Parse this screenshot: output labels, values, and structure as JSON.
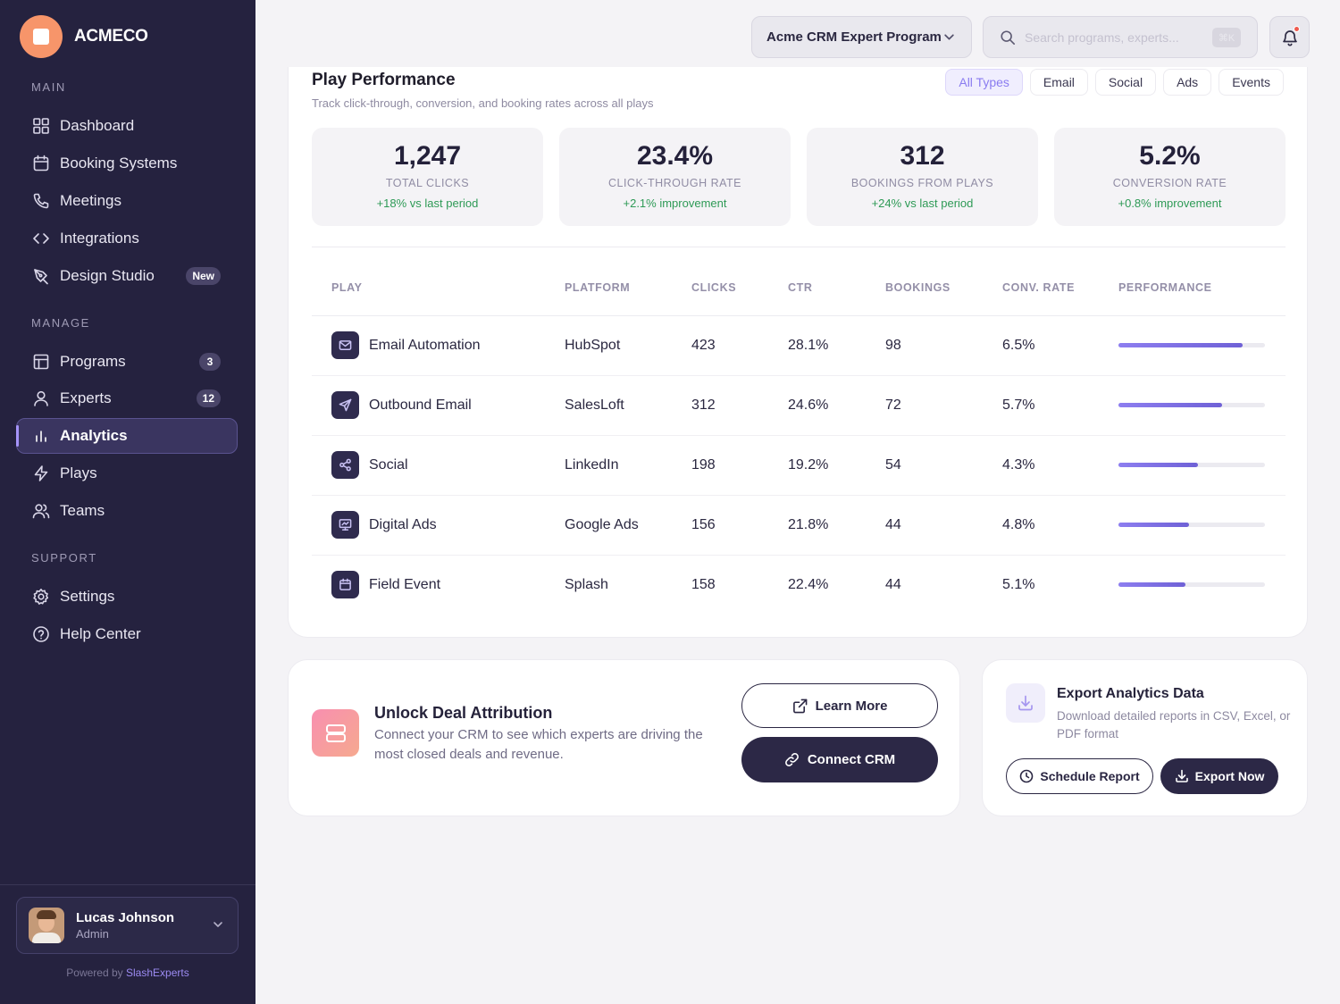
{
  "brand": {
    "name": "ACMECO"
  },
  "sidebar": {
    "sections": {
      "main": "MAIN",
      "manage": "MANAGE",
      "support": "SUPPORT"
    },
    "main_items": [
      {
        "label": "Dashboard",
        "icon": "grid-icon"
      },
      {
        "label": "Booking Systems",
        "icon": "calendar-icon"
      },
      {
        "label": "Meetings",
        "icon": "phone-icon"
      },
      {
        "label": "Integrations",
        "icon": "code-icon"
      },
      {
        "label": "Design Studio",
        "icon": "pen-tool-icon",
        "badge": "New"
      }
    ],
    "manage_items": [
      {
        "label": "Programs",
        "icon": "layout-icon",
        "badge": "3"
      },
      {
        "label": "Experts",
        "icon": "user-icon",
        "badge": "12"
      },
      {
        "label": "Analytics",
        "icon": "bar-chart-icon",
        "active": true
      },
      {
        "label": "Plays",
        "icon": "lightning-icon"
      },
      {
        "label": "Teams",
        "icon": "users-icon"
      }
    ],
    "support_items": [
      {
        "label": "Settings",
        "icon": "gear-icon"
      },
      {
        "label": "Help Center",
        "icon": "help-circle-icon"
      }
    ],
    "user": {
      "name": "Lucas Johnson",
      "role": "Admin"
    },
    "powered_prefix": "Powered by",
    "powered_brand": "SlashExperts"
  },
  "topbar": {
    "program_select": "Acme CRM Expert Program",
    "search_placeholder": "Search programs, experts...",
    "search_shortcut": "⌘K"
  },
  "performance": {
    "title": "Play Performance",
    "subtitle": "Track click-through, conversion, and booking rates across all plays",
    "filters": [
      "All Types",
      "Email",
      "Social",
      "Ads",
      "Events"
    ],
    "active_filter": "All Types",
    "stats": [
      {
        "value": "1,247",
        "label": "TOTAL CLICKS",
        "delta": "+18% vs last period"
      },
      {
        "value": "23.4%",
        "label": "CLICK-THROUGH RATE",
        "delta": "+2.1% improvement"
      },
      {
        "value": "312",
        "label": "BOOKINGS FROM PLAYS",
        "delta": "+24% vs last period"
      },
      {
        "value": "5.2%",
        "label": "CONVERSION RATE",
        "delta": "+0.8% improvement"
      }
    ],
    "columns": [
      "PLAY",
      "PLATFORM",
      "CLICKS",
      "CTR",
      "BOOKINGS",
      "CONV. RATE",
      "PERFORMANCE"
    ],
    "rows": [
      {
        "play": "Email Automation",
        "icon": "mail-icon",
        "platform": "HubSpot",
        "clicks": "423",
        "ctr": "28.1%",
        "bookings": "98",
        "conv": "6.5%",
        "performance": 0.85
      },
      {
        "play": "Outbound Email",
        "icon": "send-icon",
        "platform": "SalesLoft",
        "clicks": "312",
        "ctr": "24.6%",
        "bookings": "72",
        "conv": "5.7%",
        "performance": 0.71
      },
      {
        "play": "Social",
        "icon": "share-icon",
        "platform": "LinkedIn",
        "clicks": "198",
        "ctr": "19.2%",
        "bookings": "54",
        "conv": "4.3%",
        "performance": 0.54
      },
      {
        "play": "Digital Ads",
        "icon": "monitor-icon",
        "platform": "Google Ads",
        "clicks": "156",
        "ctr": "21.8%",
        "bookings": "44",
        "conv": "4.8%",
        "performance": 0.48
      },
      {
        "play": "Field Event",
        "icon": "calendar-icon",
        "platform": "Splash",
        "clicks": "158",
        "ctr": "22.4%",
        "bookings": "44",
        "conv": "5.1%",
        "performance": 0.46
      }
    ]
  },
  "deal": {
    "title": "Unlock Deal Attribution",
    "text": "Connect your CRM to see which experts are driving the most closed deals and revenue.",
    "learn_more": "Learn More",
    "connect": "Connect CRM"
  },
  "export": {
    "title": "Export Analytics Data",
    "text": "Download detailed reports in CSV, Excel, or PDF format",
    "schedule": "Schedule Report",
    "export_now": "Export Now"
  },
  "colors": {
    "sidebar": "#25223f",
    "accent": "#8d7ef0",
    "positive": "#2e9a56",
    "brand_logo": "#f7956a"
  }
}
